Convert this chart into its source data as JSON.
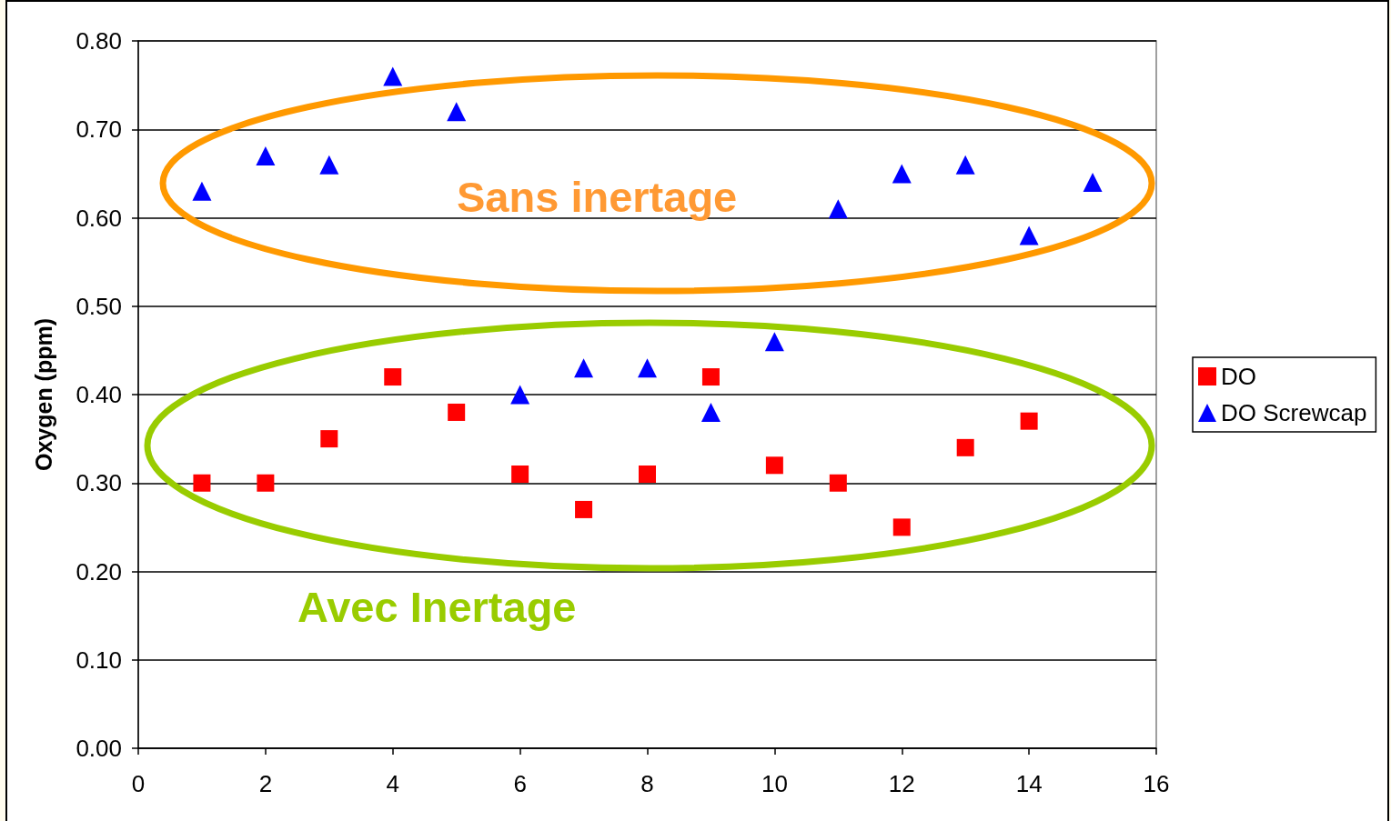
{
  "chart_data": {
    "type": "scatter",
    "ylabel": "Oxygen (ppm)",
    "annotations": [
      "Sans inertage",
      "Avec Inertage"
    ],
    "x": [
      1,
      2,
      3,
      4,
      5,
      6,
      7,
      8,
      9,
      10,
      11,
      12,
      13,
      14,
      15
    ],
    "series": [
      {
        "name": "DO",
        "color": "#ff0000",
        "marker": "square",
        "values": [
          0.3,
          0.3,
          0.35,
          0.42,
          0.38,
          0.31,
          0.27,
          0.31,
          0.42,
          0.32,
          0.3,
          0.25,
          0.34,
          0.37,
          null
        ]
      },
      {
        "name": "DO Screwcap",
        "color": "#0000ff",
        "marker": "triangle",
        "values": [
          0.63,
          0.67,
          0.66,
          0.76,
          0.72,
          0.4,
          0.43,
          0.43,
          0.38,
          0.46,
          0.61,
          0.65,
          0.66,
          0.58,
          0.64
        ]
      }
    ],
    "xlim": [
      0,
      16
    ],
    "xticks": [
      0,
      2,
      4,
      6,
      8,
      10,
      12,
      14,
      16
    ],
    "ylim": [
      0,
      0.8
    ],
    "yticks": [
      {
        "value": 0,
        "label": "0.00"
      },
      {
        "value": 0.1,
        "label": "0.10"
      },
      {
        "value": 0.2,
        "label": "0.20"
      },
      {
        "value": 0.3,
        "label": "0.30"
      },
      {
        "value": 0.4,
        "label": "0.40"
      },
      {
        "value": 0.5,
        "label": "0.50"
      },
      {
        "value": 0.6,
        "label": "0.60"
      },
      {
        "value": 0.7,
        "label": "0.70"
      },
      {
        "value": 0.8,
        "label": "0.80"
      }
    ],
    "grid": "y",
    "legend": "right"
  }
}
